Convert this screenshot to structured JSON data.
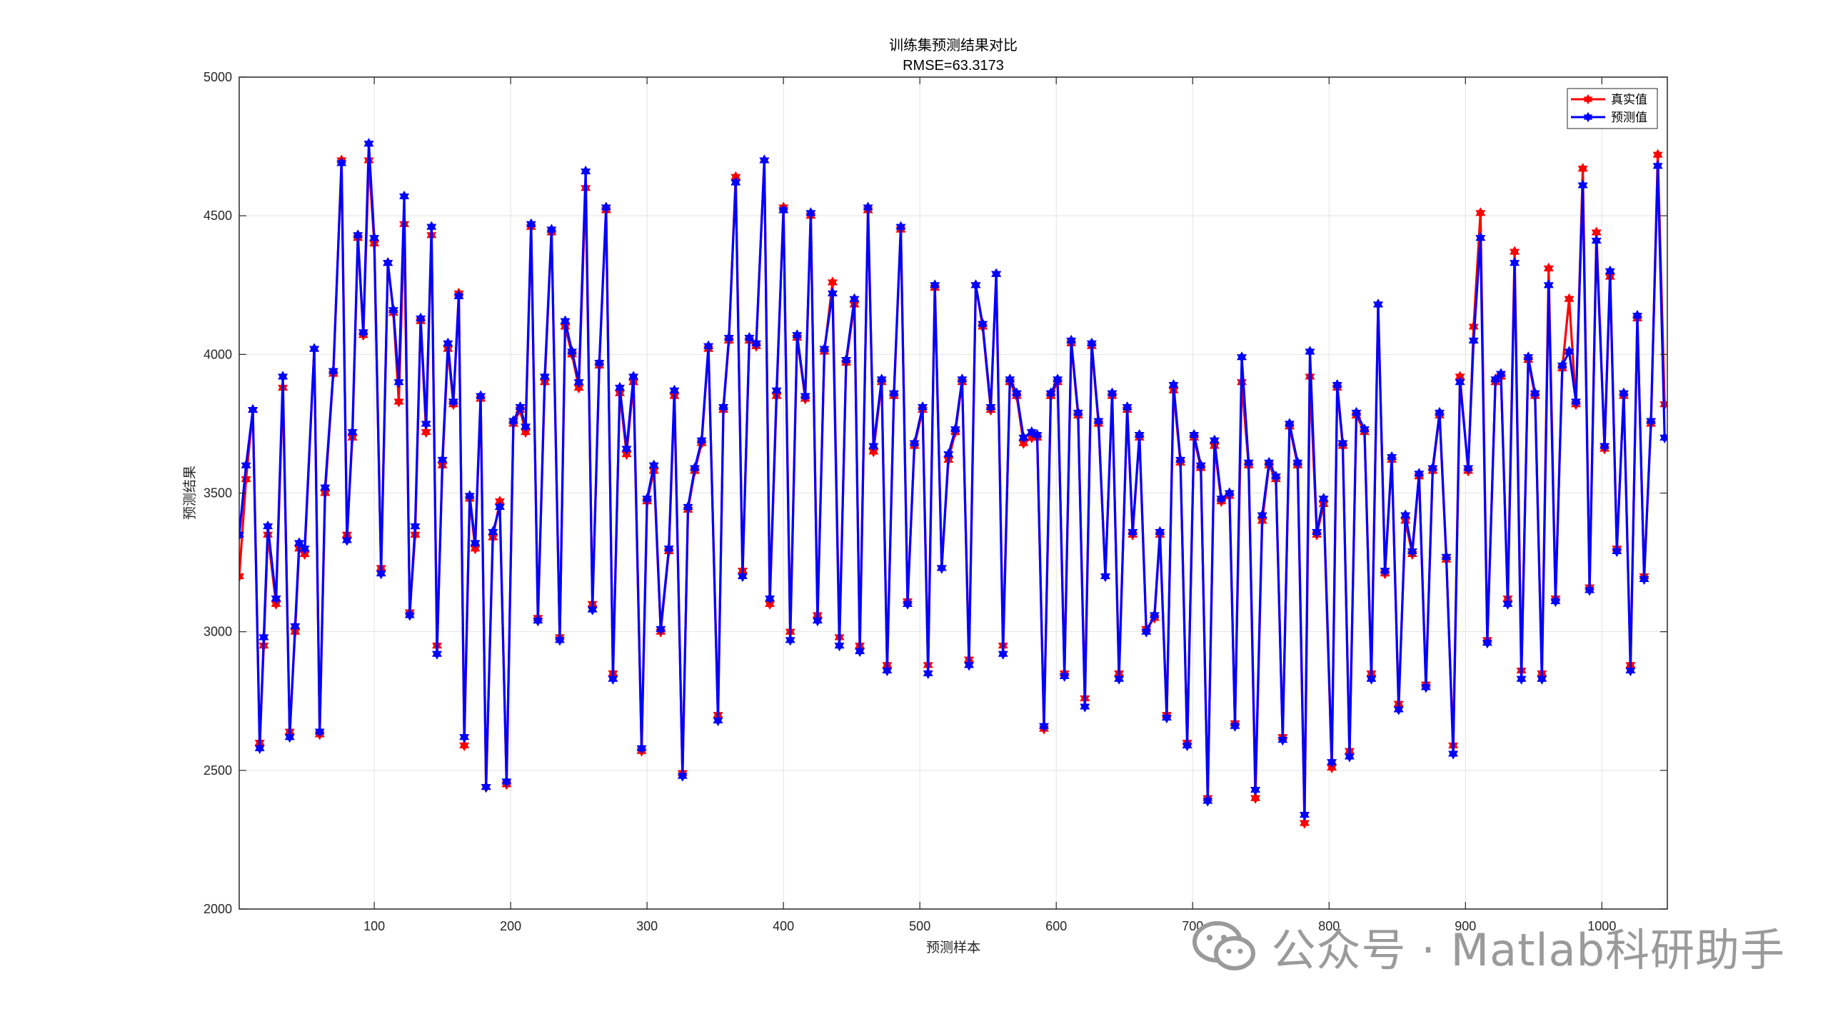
{
  "chart_data": {
    "type": "line",
    "title": "训练集预测结果对比",
    "subtitle": "RMSE=63.3173",
    "xlabel": "预测样本",
    "ylabel": "预测结果",
    "xlim": [
      1,
      1048
    ],
    "ylim": [
      2000,
      5000
    ],
    "xticks": [
      100,
      200,
      300,
      400,
      500,
      600,
      700,
      800,
      900,
      1000
    ],
    "yticks": [
      2000,
      2500,
      3000,
      3500,
      4000,
      4500,
      5000
    ],
    "grid": true,
    "legend_position": "top-right",
    "marker": "hexagram",
    "series": [
      {
        "name": "真实值",
        "color": "#ff0000",
        "x": [
          1,
          6,
          11,
          16,
          19,
          22,
          28,
          33,
          38,
          42,
          45,
          49,
          56,
          60,
          64,
          70,
          76,
          80,
          84,
          88,
          92,
          96,
          100,
          105,
          110,
          114,
          118,
          122,
          126,
          130,
          134,
          138,
          142,
          146,
          150,
          154,
          158,
          162,
          166,
          170,
          174,
          178,
          182,
          187,
          192,
          197,
          202,
          207,
          211,
          215,
          220,
          225,
          230,
          236,
          240,
          245,
          250,
          255,
          260,
          265,
          270,
          275,
          280,
          285,
          290,
          296,
          300,
          305,
          310,
          316,
          320,
          326,
          330,
          335,
          340,
          345,
          352,
          356,
          360,
          365,
          370,
          375,
          380,
          386,
          390,
          395,
          400,
          405,
          410,
          416,
          420,
          425,
          430,
          436,
          441,
          446,
          452,
          456,
          462,
          466,
          472,
          476,
          481,
          486,
          491,
          496,
          502,
          506,
          511,
          516,
          521,
          526,
          531,
          536,
          541,
          546,
          552,
          556,
          561,
          566,
          571,
          576,
          582,
          586,
          591,
          596,
          601,
          606,
          611,
          616,
          621,
          626,
          631,
          636,
          641,
          646,
          652,
          656,
          661,
          666,
          672,
          676,
          681,
          686,
          691,
          696,
          701,
          706,
          711,
          716,
          721,
          727,
          731,
          736,
          741,
          746,
          751,
          756,
          761,
          766,
          771,
          777,
          782,
          786,
          791,
          796,
          802,
          806,
          810,
          815,
          820,
          826,
          831,
          836,
          841,
          846,
          851,
          856,
          861,
          866,
          871,
          876,
          881,
          886,
          891,
          896,
          902,
          906,
          911,
          916,
          922,
          926,
          931,
          936,
          941,
          946,
          951,
          956,
          961,
          966,
          971,
          976,
          981,
          986,
          991,
          996,
          1002,
          1006,
          1011,
          1016,
          1021,
          1026,
          1031,
          1036,
          1041,
          1046
        ],
        "values": [
          3200,
          3550,
          3800,
          2600,
          2950,
          3350,
          3100,
          3880,
          2640,
          3000,
          3300,
          3280,
          4020,
          2630,
          3500,
          3930,
          4700,
          3350,
          3700,
          4420,
          4070,
          4700,
          4400,
          3230,
          4330,
          4150,
          3830,
          4470,
          3070,
          3350,
          4120,
          3720,
          4430,
          2950,
          3600,
          4020,
          3820,
          4220,
          2590,
          3480,
          3300,
          3840,
          2440,
          3340,
          3470,
          2450,
          3750,
          3800,
          3720,
          4460,
          3050,
          3900,
          4440,
          2980,
          4100,
          4000,
          3880,
          4600,
          3100,
          3960,
          4520,
          2850,
          3860,
          3640,
          3900,
          2570,
          3470,
          3580,
          3000,
          3290,
          3850,
          2490,
          3440,
          3580,
          3680,
          4020,
          2700,
          3800,
          4050,
          4640,
          3220,
          4050,
          4030,
          4700,
          3100,
          3850,
          4530,
          3000,
          4060,
          3840,
          4500,
          3060,
          4010,
          4260,
          2980,
          3970,
          4180,
          2950,
          4520,
          3650,
          3900,
          2880,
          3850,
          4450,
          3110,
          3670,
          3800,
          2880,
          4240,
          3230,
          3620,
          3720,
          3900,
          2900,
          4250,
          4100,
          3800,
          4290,
          2950,
          3900,
          3850,
          3680,
          3700,
          3700,
          2650,
          3850,
          3900,
          2850,
          4040,
          3780,
          2760,
          4030,
          3750,
          3200,
          3850,
          2850,
          3800,
          3350,
          3700,
          3010,
          3050,
          3350,
          2700,
          3870,
          3610,
          2600,
          3700,
          3590,
          2400,
          3670,
          3470,
          3490,
          2670,
          3900,
          3600,
          2400,
          3400,
          3600,
          3550,
          2620,
          3740,
          3600,
          2310,
          3920,
          3350,
          3460,
          2510,
          3880,
          3670,
          2570,
          3780,
          3720,
          2850,
          4180,
          3210,
          3620,
          2740,
          3400,
          3280,
          3560,
          2810,
          3580,
          3780,
          3260,
          2590,
          3920,
          3580,
          4100,
          4510,
          2970,
          3900,
          3920,
          3120,
          4370,
          2860,
          3980,
          3850,
          2850,
          4310,
          3120,
          3950,
          4200,
          3820,
          4670,
          3160,
          4440,
          3660,
          4280,
          3300,
          3850,
          2880,
          4130,
          3200,
          3750,
          4720,
          3820
        ]
      },
      {
        "name": "预测值",
        "color": "#0000ff",
        "x": [
          1,
          6,
          11,
          16,
          19,
          22,
          28,
          33,
          38,
          42,
          45,
          49,
          56,
          60,
          64,
          70,
          76,
          80,
          84,
          88,
          92,
          96,
          100,
          105,
          110,
          114,
          118,
          122,
          126,
          130,
          134,
          138,
          142,
          146,
          150,
          154,
          158,
          162,
          166,
          170,
          174,
          178,
          182,
          187,
          192,
          197,
          202,
          207,
          211,
          215,
          220,
          225,
          230,
          236,
          240,
          245,
          250,
          255,
          260,
          265,
          270,
          275,
          280,
          285,
          290,
          296,
          300,
          305,
          310,
          316,
          320,
          326,
          330,
          335,
          340,
          345,
          352,
          356,
          360,
          365,
          370,
          375,
          380,
          386,
          390,
          395,
          400,
          405,
          410,
          416,
          420,
          425,
          430,
          436,
          441,
          446,
          452,
          456,
          462,
          466,
          472,
          476,
          481,
          486,
          491,
          496,
          502,
          506,
          511,
          516,
          521,
          526,
          531,
          536,
          541,
          546,
          552,
          556,
          561,
          566,
          571,
          576,
          582,
          586,
          591,
          596,
          601,
          606,
          611,
          616,
          621,
          626,
          631,
          636,
          641,
          646,
          652,
          656,
          661,
          666,
          672,
          676,
          681,
          686,
          691,
          696,
          701,
          706,
          711,
          716,
          721,
          727,
          731,
          736,
          741,
          746,
          751,
          756,
          761,
          766,
          771,
          777,
          782,
          786,
          791,
          796,
          802,
          806,
          810,
          815,
          820,
          826,
          831,
          836,
          841,
          846,
          851,
          856,
          861,
          866,
          871,
          876,
          881,
          886,
          891,
          896,
          902,
          906,
          911,
          916,
          922,
          926,
          931,
          936,
          941,
          946,
          951,
          956,
          961,
          966,
          971,
          976,
          981,
          986,
          991,
          996,
          1002,
          1006,
          1011,
          1016,
          1021,
          1026,
          1031,
          1036,
          1041,
          1046
        ],
        "values": [
          3350,
          3600,
          3800,
          2580,
          2980,
          3380,
          3120,
          3920,
          2620,
          3020,
          3320,
          3300,
          4020,
          2640,
          3520,
          3940,
          4690,
          3330,
          3720,
          4430,
          4080,
          4760,
          4420,
          3210,
          4330,
          4160,
          3900,
          4570,
          3060,
          3380,
          4130,
          3750,
          4460,
          2920,
          3620,
          4040,
          3830,
          4210,
          2620,
          3490,
          3320,
          3850,
          2440,
          3360,
          3450,
          2460,
          3760,
          3810,
          3740,
          4470,
          3040,
          3920,
          4450,
          2970,
          4120,
          4010,
          3900,
          4660,
          3080,
          3970,
          4530,
          2830,
          3880,
          3660,
          3920,
          2580,
          3480,
          3600,
          3010,
          3300,
          3870,
          2480,
          3450,
          3590,
          3690,
          4030,
          2680,
          3810,
          4060,
          4620,
          3200,
          4060,
          4040,
          4700,
          3120,
          3870,
          4520,
          2970,
          4070,
          3850,
          4510,
          3040,
          4020,
          4220,
          2950,
          3980,
          4200,
          2930,
          4530,
          3670,
          3910,
          2860,
          3860,
          4460,
          3100,
          3680,
          3810,
          2850,
          4250,
          3230,
          3640,
          3730,
          3910,
          2880,
          4250,
          4110,
          3810,
          4290,
          2920,
          3910,
          3860,
          3700,
          3720,
          3710,
          2660,
          3860,
          3910,
          2840,
          4050,
          3790,
          2730,
          4040,
          3760,
          3200,
          3860,
          2830,
          3810,
          3360,
          3710,
          3000,
          3060,
          3360,
          2690,
          3890,
          3620,
          2590,
          3710,
          3600,
          2390,
          3690,
          3480,
          3500,
          2660,
          3990,
          3610,
          2430,
          3420,
          3610,
          3560,
          2610,
          3750,
          3610,
          2340,
          4010,
          3360,
          3480,
          2530,
          3890,
          3680,
          2550,
          3790,
          3730,
          2830,
          4180,
          3220,
          3630,
          2720,
          3420,
          3290,
          3570,
          2800,
          3590,
          3790,
          3270,
          2560,
          3900,
          3590,
          4050,
          4420,
          2960,
          3910,
          3930,
          3100,
          4330,
          2830,
          3990,
          3860,
          2830,
          4250,
          3110,
          3960,
          4010,
          3830,
          4610,
          3150,
          4410,
          3670,
          4300,
          3290,
          3860,
          2860,
          4140,
          3190,
          3760,
          4680,
          3700
        ]
      }
    ]
  },
  "watermark": {
    "text": "公众号 · Matlab科研助手",
    "icon": "wechat-icon"
  }
}
